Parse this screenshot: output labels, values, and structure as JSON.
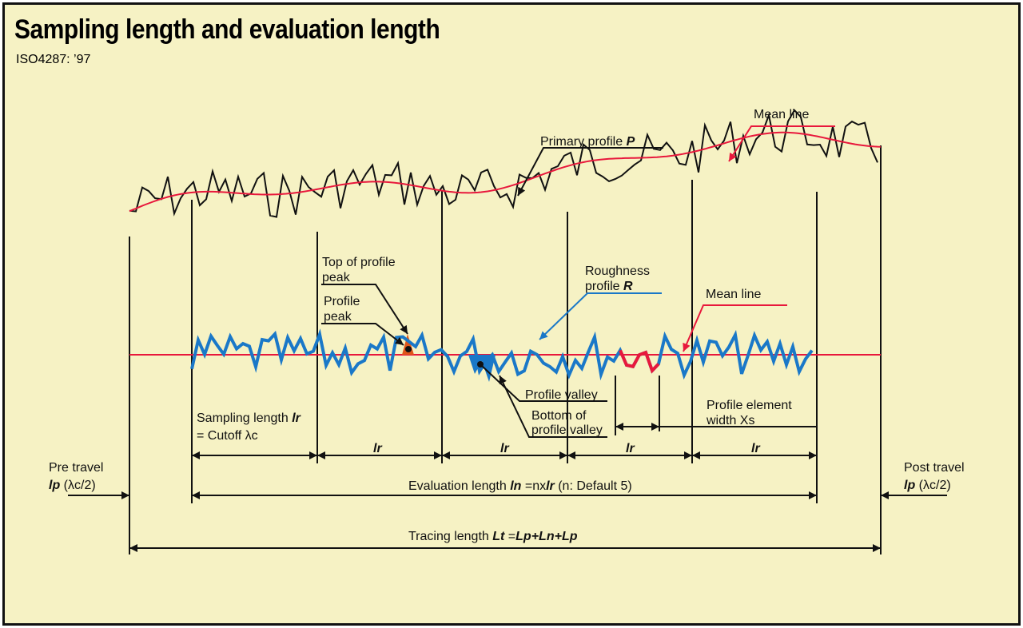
{
  "title": "Sampling length and evaluation length",
  "subtitle": "ISO4287: ’97",
  "labels": {
    "mean_line_top": "Mean line",
    "primary_profile": "Primary profile ",
    "primary_profile_sym": "P",
    "top_of_peak_1": "Top of profile",
    "top_of_peak_2": "peak",
    "profile_peak_1": "Profile",
    "profile_peak_2": "peak",
    "roughness_1": "Roughness",
    "roughness_2": "profile ",
    "roughness_sym": "R",
    "mean_line_bottom": "Mean line",
    "profile_valley": "Profile valley",
    "bottom_valley_1": "Bottom of",
    "bottom_valley_2": "profile valley",
    "element_width_1": "Profile element",
    "element_width_2": "width Xs",
    "sampling_length_1": "Sampling length ",
    "sampling_length_sym": "lr",
    "sampling_length_2": "= Cutoff λc",
    "lr": "lr",
    "pre_travel_1": "Pre travel",
    "pre_travel_sym": "lp",
    "pre_travel_2": " (λc/2)",
    "post_travel_1": "Post travel",
    "post_travel_sym": "lp",
    "post_travel_2": " (λc/2)",
    "evaluation_a": "Evaluation length ",
    "evaluation_b": "ln",
    "evaluation_c": " =nx",
    "evaluation_d": "lr",
    "evaluation_e": " (n: Default 5)",
    "tracing_a": "Tracing length ",
    "tracing_b": "Lt",
    "tracing_c": " =",
    "tracing_d": "Lp+Ln+Lp"
  },
  "colors": {
    "background": "#f6f2c4",
    "mean_line": "#e8183c",
    "roughness": "#1a78c8",
    "highlight": "#e8183c",
    "peak_fill": "#e0561a"
  }
}
